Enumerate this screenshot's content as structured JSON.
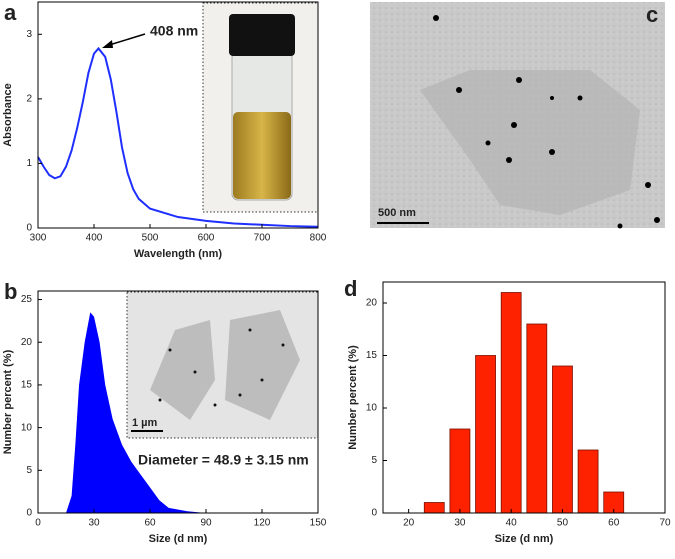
{
  "chart_data": [
    {
      "type": "line",
      "panel_label": "a",
      "x_label": "Wavelength (nm)",
      "y_label": "Absorbance",
      "annotation": "408 nm",
      "x": [
        300,
        310,
        320,
        330,
        340,
        350,
        360,
        370,
        380,
        390,
        400,
        408,
        420,
        430,
        440,
        450,
        460,
        470,
        480,
        500,
        550,
        600,
        650,
        700,
        750,
        800
      ],
      "values": [
        1.1,
        0.95,
        0.82,
        0.77,
        0.8,
        0.95,
        1.2,
        1.55,
        1.95,
        2.4,
        2.7,
        2.78,
        2.65,
        2.3,
        1.8,
        1.25,
        0.85,
        0.6,
        0.45,
        0.3,
        0.17,
        0.11,
        0.07,
        0.05,
        0.03,
        0.02
      ],
      "color": "#1f2fff",
      "xlim": [
        300,
        800
      ],
      "xticks": [
        300,
        400,
        500,
        600,
        700,
        800
      ],
      "ylim": [
        0,
        3.5
      ],
      "yticks": [
        0,
        1,
        2,
        3
      ]
    },
    {
      "type": "area",
      "panel_label": "b",
      "x_label": "Size (d nm)",
      "y_label": "Number percent (%)",
      "annotation": "Diameter = 48.9 ± 3.15 nm",
      "inset_scale_bar": "1 µm",
      "x": [
        15,
        18,
        20,
        22,
        25,
        28,
        30,
        33,
        36,
        40,
        45,
        50,
        55,
        60,
        65,
        70,
        80,
        90
      ],
      "values": [
        0,
        2,
        8,
        15,
        20,
        23.5,
        23,
        20,
        15,
        11,
        8,
        6,
        4.5,
        3,
        1.5,
        0.6,
        0.2,
        0
      ],
      "color": "#0000ff",
      "xlim": [
        0,
        150
      ],
      "xticks": [
        0,
        30,
        60,
        90,
        120,
        150
      ],
      "ylim": [
        0,
        26
      ],
      "yticks": [
        0,
        5,
        10,
        15,
        20,
        25
      ]
    },
    {
      "type": "bar",
      "panel_label": "d",
      "x_label": "Size (d nm)",
      "y_label": "Number percent (%)",
      "x": [
        25,
        30,
        35,
        40,
        45,
        50,
        55,
        60
      ],
      "values": [
        1,
        8,
        15,
        21,
        18,
        14,
        6,
        2
      ],
      "color": "#ff2200",
      "xlim": [
        15,
        70
      ],
      "xticks": [
        20,
        30,
        40,
        50,
        60,
        70
      ],
      "ylim": [
        0,
        22
      ],
      "yticks": [
        0,
        5,
        10,
        15,
        20
      ]
    }
  ],
  "panel_c": {
    "label": "c",
    "scale_bar": "500 nm"
  }
}
